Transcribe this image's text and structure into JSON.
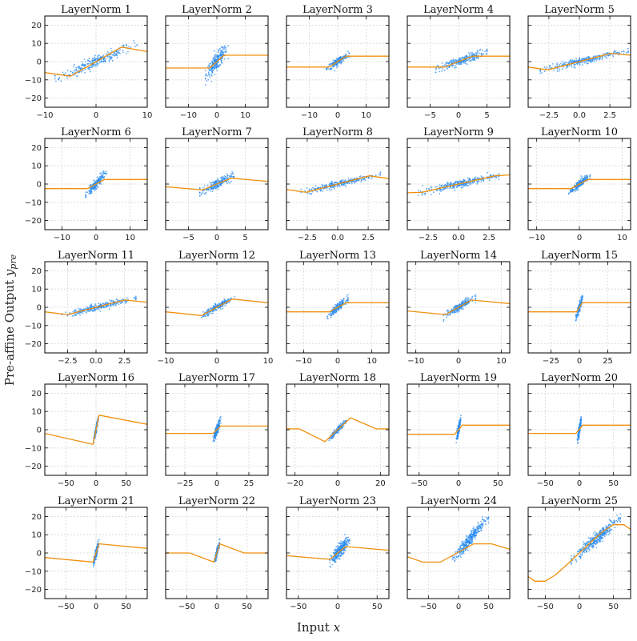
{
  "figure": {
    "ylabel_main": "Pre-affine Output",
    "ylabel_var": "y",
    "ylabel_sub": "pre",
    "xlabel_main": "Input",
    "xlabel_var": "x"
  },
  "style": {
    "scatter_color": "#2b8cf0",
    "curve_color": "#f0900c",
    "grid_color": "#d6d6d6",
    "axis_color": "#000000"
  },
  "chart_data": [
    {
      "type": "scatter",
      "title": "LayerNorm 1",
      "xlim": [
        -10,
        10
      ],
      "ylim": [
        -25,
        25
      ],
      "xticks": [
        -10,
        0,
        10
      ],
      "yticks": [
        -20,
        -10,
        0,
        10,
        20
      ],
      "scatter": {
        "x_range": [
          -8,
          8
        ],
        "slope": 1.2,
        "noise": 1.6,
        "n": 260
      },
      "curve": {
        "x": [
          -10,
          -5,
          5,
          10
        ],
        "y": [
          -6,
          -8,
          8,
          5.5
        ]
      }
    },
    {
      "type": "scatter",
      "title": "LayerNorm 2",
      "xlim": [
        -18,
        18
      ],
      "ylim": [
        -25,
        25
      ],
      "xticks": [
        -10,
        0,
        10
      ],
      "yticks": [
        -20,
        -10,
        0,
        10,
        20
      ],
      "scatter": {
        "x_range": [
          -4,
          4
        ],
        "slope": 1.8,
        "noise": 2.2,
        "n": 240
      },
      "curve": {
        "x": [
          -18,
          -2.5,
          2.5,
          18
        ],
        "y": [
          -3.5,
          -3.5,
          3.5,
          3.5
        ]
      }
    },
    {
      "type": "scatter",
      "title": "LayerNorm 3",
      "xlim": [
        -18,
        18
      ],
      "ylim": [
        -25,
        25
      ],
      "xticks": [
        -10,
        0,
        10
      ],
      "yticks": [
        -20,
        -10,
        0,
        10,
        20
      ],
      "scatter": {
        "x_range": [
          -4,
          4
        ],
        "slope": 1.0,
        "noise": 1.0,
        "n": 200
      },
      "curve": {
        "x": [
          -18,
          -3,
          3,
          18
        ],
        "y": [
          -3,
          -3,
          3,
          3
        ]
      }
    },
    {
      "type": "scatter",
      "title": "LayerNorm 4",
      "xlim": [
        -9,
        9
      ],
      "ylim": [
        -25,
        25
      ],
      "xticks": [
        -5,
        0,
        5
      ],
      "yticks": [
        -20,
        -10,
        0,
        10,
        20
      ],
      "scatter": {
        "x_range": [
          -4,
          5
        ],
        "slope": 1.1,
        "noise": 1.2,
        "n": 240
      },
      "curve": {
        "x": [
          -9,
          -2.5,
          2.5,
          9
        ],
        "y": [
          -3,
          -3,
          3,
          3
        ]
      }
    },
    {
      "type": "scatter",
      "title": "LayerNorm 5",
      "xlim": [
        -4.2,
        4.2
      ],
      "ylim": [
        -25,
        25
      ],
      "xticks": [
        -2.5,
        0.0,
        2.5
      ],
      "xticklabels": [
        "−2.5",
        "0.0",
        "2.5"
      ],
      "yticks": [
        -20,
        -10,
        0,
        10,
        20
      ],
      "scatter": {
        "x_range": [
          -3.2,
          4
        ],
        "slope": 1.5,
        "noise": 0.9,
        "n": 280
      },
      "curve": {
        "x": [
          -4.2,
          -2.6,
          2.6,
          4.2
        ],
        "y": [
          -3,
          -4.5,
          4.5,
          3.5
        ]
      }
    },
    {
      "type": "scatter",
      "title": "LayerNorm 6",
      "xlim": [
        -15,
        15
      ],
      "ylim": [
        -25,
        25
      ],
      "xticks": [
        -10,
        0,
        10
      ],
      "yticks": [
        -20,
        -10,
        0,
        10,
        20
      ],
      "scatter": {
        "x_range": [
          -3,
          3
        ],
        "slope": 2.0,
        "noise": 1.2,
        "n": 200
      },
      "curve": {
        "x": [
          -15,
          -2.5,
          2.5,
          15
        ],
        "y": [
          -2.5,
          -2.5,
          2.5,
          2.5
        ]
      }
    },
    {
      "type": "scatter",
      "title": "LayerNorm 7",
      "xlim": [
        -9,
        9
      ],
      "ylim": [
        -25,
        25
      ],
      "xticks": [
        -5,
        0,
        5
      ],
      "yticks": [
        -20,
        -10,
        0,
        10,
        20
      ],
      "scatter": {
        "x_range": [
          -3,
          3
        ],
        "slope": 1.5,
        "noise": 1.3,
        "n": 220
      },
      "curve": {
        "x": [
          -9,
          -2.5,
          2.5,
          9
        ],
        "y": [
          -1.5,
          -3.2,
          3.2,
          1.5
        ]
      }
    },
    {
      "type": "scatter",
      "title": "LayerNorm 8",
      "xlim": [
        -4.2,
        4.2
      ],
      "ylim": [
        -25,
        25
      ],
      "xticks": [
        -2.5,
        0.0,
        2.5
      ],
      "xticklabels": [
        "−2.5",
        "0.0",
        "2.5"
      ],
      "yticks": [
        -20,
        -10,
        0,
        10,
        20
      ],
      "scatter": {
        "x_range": [
          -3,
          3.5
        ],
        "slope": 1.6,
        "noise": 0.9,
        "n": 280
      },
      "curve": {
        "x": [
          -4.2,
          -2.6,
          2.6,
          4.2
        ],
        "y": [
          -3,
          -4.5,
          4.5,
          3
        ]
      }
    },
    {
      "type": "scatter",
      "title": "LayerNorm 9",
      "xlim": [
        -4.2,
        4.2
      ],
      "ylim": [
        -25,
        25
      ],
      "xticks": [
        -2.5,
        0.0,
        2.5
      ],
      "xticklabels": [
        "−2.5",
        "0.0",
        "2.5"
      ],
      "yticks": [
        -20,
        -10,
        0,
        10,
        20
      ],
      "scatter": {
        "x_range": [
          -3.3,
          3.3
        ],
        "slope": 1.5,
        "noise": 1.0,
        "n": 300
      },
      "curve": {
        "x": [
          -4.2,
          -3,
          3,
          4.2
        ],
        "y": [
          -4.8,
          -4.5,
          4.5,
          5
        ]
      }
    },
    {
      "type": "scatter",
      "title": "LayerNorm 10",
      "xlim": [
        -12,
        12
      ],
      "ylim": [
        -25,
        25
      ],
      "xticks": [
        -10,
        0,
        10
      ],
      "yticks": [
        -20,
        -10,
        0,
        10,
        20
      ],
      "scatter": {
        "x_range": [
          -2.5,
          2.5
        ],
        "slope": 2.0,
        "noise": 1.0,
        "n": 200
      },
      "curve": {
        "x": [
          -12,
          -2,
          2,
          12
        ],
        "y": [
          -2.5,
          -2.5,
          2.5,
          2.5
        ]
      }
    },
    {
      "type": "scatter",
      "title": "LayerNorm 11",
      "xlim": [
        -4.5,
        4.5
      ],
      "ylim": [
        -25,
        25
      ],
      "xticks": [
        -2.5,
        0.0,
        2.5
      ],
      "xticklabels": [
        "−2.5",
        "0.0",
        "2.5"
      ],
      "yticks": [
        -20,
        -10,
        0,
        10,
        20
      ],
      "scatter": {
        "x_range": [
          -3,
          3.5
        ],
        "slope": 1.5,
        "noise": 0.9,
        "n": 260
      },
      "curve": {
        "x": [
          -4.5,
          -2.5,
          2.5,
          4.5
        ],
        "y": [
          -2.5,
          -4,
          4,
          2.8
        ]
      }
    },
    {
      "type": "scatter",
      "title": "LayerNorm 12",
      "xlim": [
        -10,
        10
      ],
      "ylim": [
        -25,
        25
      ],
      "xticks": [
        -10,
        0,
        10
      ],
      "yticks": [
        -20,
        -10,
        0,
        10,
        20
      ],
      "scatter": {
        "x_range": [
          -3,
          3.5
        ],
        "slope": 1.6,
        "noise": 0.8,
        "n": 220
      },
      "curve": {
        "x": [
          -10,
          -3,
          3,
          10
        ],
        "y": [
          -2.5,
          -4.5,
          4.5,
          2.5
        ]
      }
    },
    {
      "type": "scatter",
      "title": "LayerNorm 13",
      "xlim": [
        -15,
        15
      ],
      "ylim": [
        -25,
        25
      ],
      "xticks": [
        -10,
        0,
        10
      ],
      "yticks": [
        -20,
        -10,
        0,
        10,
        20
      ],
      "scatter": {
        "x_range": [
          -3,
          3
        ],
        "slope": 1.6,
        "noise": 1.0,
        "n": 200
      },
      "curve": {
        "x": [
          -15,
          -2.5,
          2.5,
          15
        ],
        "y": [
          -2.5,
          -2.5,
          2.5,
          2.5
        ]
      }
    },
    {
      "type": "scatter",
      "title": "LayerNorm 14",
      "xlim": [
        -12,
        12
      ],
      "ylim": [
        -25,
        25
      ],
      "xticks": [
        -10,
        0,
        10
      ],
      "yticks": [
        -20,
        -10,
        0,
        10,
        20
      ],
      "scatter": {
        "x_range": [
          -3.5,
          4
        ],
        "slope": 1.4,
        "noise": 1.0,
        "n": 220
      },
      "curve": {
        "x": [
          -12,
          -3,
          3,
          12
        ],
        "y": [
          -2,
          -4,
          4,
          2
        ]
      }
    },
    {
      "type": "scatter",
      "title": "LayerNorm 15",
      "xlim": [
        -45,
        45
      ],
      "ylim": [
        -25,
        25
      ],
      "xticks": [
        -25,
        0,
        25
      ],
      "yticks": [
        -20,
        -10,
        0,
        10,
        20
      ],
      "scatter": {
        "x_range": [
          -3,
          3
        ],
        "slope": 2.0,
        "noise": 1.2,
        "n": 160
      },
      "curve": {
        "x": [
          -45,
          -2.5,
          2.5,
          45
        ],
        "y": [
          -2.5,
          -2.5,
          2.5,
          2.5
        ]
      }
    },
    {
      "type": "scatter",
      "title": "LayerNorm 16",
      "xlim": [
        -85,
        85
      ],
      "ylim": [
        -25,
        25
      ],
      "xticks": [
        -50,
        0,
        50
      ],
      "yticks": [
        -20,
        -10,
        0,
        10,
        20
      ],
      "scatter": {
        "x_range": [
          -4,
          4
        ],
        "slope": 1.5,
        "noise": 1.0,
        "n": 140
      },
      "curve": {
        "x": [
          -85,
          -5,
          5,
          85
        ],
        "y": [
          -2,
          -8,
          8,
          3
        ]
      }
    },
    {
      "type": "scatter",
      "title": "LayerNorm 17",
      "xlim": [
        -40,
        40
      ],
      "ylim": [
        -25,
        25
      ],
      "xticks": [
        -25,
        0,
        25
      ],
      "yticks": [
        -20,
        -10,
        0,
        10,
        20
      ],
      "scatter": {
        "x_range": [
          -3,
          3
        ],
        "slope": 1.8,
        "noise": 1.3,
        "n": 180
      },
      "curve": {
        "x": [
          -40,
          -3,
          3,
          40
        ],
        "y": [
          -2,
          -2,
          2,
          2
        ]
      }
    },
    {
      "type": "scatter",
      "title": "LayerNorm 18",
      "xlim": [
        -24,
        24
      ],
      "ylim": [
        -25,
        25
      ],
      "xticks": [
        -20,
        0,
        20
      ],
      "yticks": [
        -20,
        -10,
        0,
        10,
        20
      ],
      "scatter": {
        "x_range": [
          -4,
          4
        ],
        "slope": 1.3,
        "noise": 0.8,
        "n": 180
      },
      "curve": {
        "x": [
          -24,
          -18,
          -6,
          6,
          18,
          24
        ],
        "y": [
          0.5,
          0.5,
          -6.5,
          6.5,
          0.5,
          0.5
        ]
      }
    },
    {
      "type": "scatter",
      "title": "LayerNorm 19",
      "xlim": [
        -65,
        65
      ],
      "ylim": [
        -25,
        25
      ],
      "xticks": [
        -50,
        0,
        50
      ],
      "yticks": [
        -20,
        -10,
        0,
        10,
        20
      ],
      "scatter": {
        "x_range": [
          -3,
          3
        ],
        "slope": 2.0,
        "noise": 1.3,
        "n": 160
      },
      "curve": {
        "x": [
          -65,
          -5,
          5,
          65
        ],
        "y": [
          -2.5,
          -2.5,
          2.5,
          2.5
        ]
      }
    },
    {
      "type": "scatter",
      "title": "LayerNorm 20",
      "xlim": [
        -75,
        75
      ],
      "ylim": [
        -25,
        25
      ],
      "xticks": [
        -50,
        0,
        50
      ],
      "yticks": [
        -20,
        -10,
        0,
        10,
        20
      ],
      "scatter": {
        "x_range": [
          -3,
          3
        ],
        "slope": 2.0,
        "noise": 1.3,
        "n": 160
      },
      "curve": {
        "x": [
          -75,
          -5,
          5,
          75
        ],
        "y": [
          -2,
          -2,
          2.5,
          2.5
        ]
      }
    },
    {
      "type": "scatter",
      "title": "LayerNorm 21",
      "xlim": [
        -85,
        85
      ],
      "ylim": [
        -25,
        25
      ],
      "xticks": [
        -50,
        0,
        50
      ],
      "yticks": [
        -20,
        -10,
        0,
        10,
        20
      ],
      "scatter": {
        "x_range": [
          -4,
          5
        ],
        "slope": 1.3,
        "noise": 1.3,
        "n": 170
      },
      "curve": {
        "x": [
          -85,
          -5,
          5,
          85
        ],
        "y": [
          -2.5,
          -5,
          5,
          2.5
        ]
      }
    },
    {
      "type": "scatter",
      "title": "LayerNorm 22",
      "xlim": [
        -85,
        85
      ],
      "ylim": [
        -25,
        25
      ],
      "xticks": [
        -50,
        0,
        50
      ],
      "yticks": [
        -20,
        -10,
        0,
        10,
        20
      ],
      "scatter": {
        "x_range": [
          -4,
          5
        ],
        "slope": 1.2,
        "noise": 1.0,
        "n": 150
      },
      "curve": {
        "x": [
          -85,
          -45,
          -5,
          5,
          45,
          85
        ],
        "y": [
          0,
          0,
          -5,
          5,
          0,
          0
        ]
      }
    },
    {
      "type": "scatter",
      "title": "LayerNorm 23",
      "xlim": [
        -65,
        65
      ],
      "ylim": [
        -25,
        25
      ],
      "xticks": [
        -50,
        0,
        50
      ],
      "yticks": [
        -20,
        -10,
        0,
        10,
        20
      ],
      "scatter": {
        "x_range": [
          -10,
          15
        ],
        "slope": 0.45,
        "noise": 1.8,
        "n": 320
      },
      "curve": {
        "x": [
          -65,
          -10,
          10,
          65
        ],
        "y": [
          -1.5,
          -3.5,
          3.5,
          1.5
        ]
      }
    },
    {
      "type": "scatter",
      "title": "LayerNorm 24",
      "xlim": [
        -85,
        85
      ],
      "ylim": [
        -25,
        25
      ],
      "xticks": [
        -50,
        0,
        50
      ],
      "yticks": [
        -20,
        -10,
        0,
        10,
        20
      ],
      "scatter": {
        "x_range": [
          -10,
          50
        ],
        "slope": 0.4,
        "noise": 1.6,
        "n": 320
      },
      "curve": {
        "x": [
          -85,
          -60,
          -30,
          25,
          55,
          85
        ],
        "y": [
          -2,
          -5,
          -5,
          5,
          5,
          2
        ]
      }
    },
    {
      "type": "scatter",
      "title": "LayerNorm 25",
      "xlim": [
        -75,
        75
      ],
      "ylim": [
        -25,
        25
      ],
      "xticks": [
        -50,
        0,
        50
      ],
      "yticks": [
        -20,
        -10,
        0,
        10,
        20
      ],
      "scatter": {
        "x_range": [
          -12,
          60
        ],
        "slope": 0.32,
        "noise": 1.8,
        "n": 340
      },
      "curve": {
        "x": [
          -75,
          -65,
          -50,
          -35,
          -20,
          0,
          20,
          35,
          50,
          65,
          75
        ],
        "y": [
          -13,
          -15.5,
          -15.5,
          -12,
          -7,
          0,
          7,
          12,
          15.5,
          15.5,
          13
        ]
      }
    }
  ]
}
